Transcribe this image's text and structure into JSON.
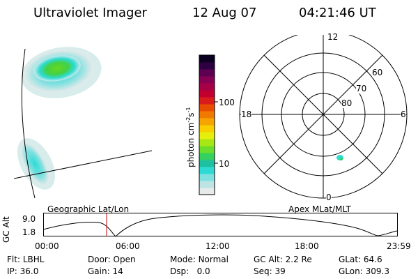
{
  "header": {
    "instrument": "Ultraviolet Imager",
    "date": "12 Aug 07",
    "time": "04:21:46 UT"
  },
  "colorbar": {
    "label": "photon cm⁻²s⁻¹",
    "label_parts": [
      "photon cm",
      "-2",
      "s",
      "-1"
    ],
    "ticks": [
      "100",
      "10"
    ],
    "colors": [
      "#e6eaea",
      "#bde4e4",
      "#7fe0e0",
      "#2ddbd4",
      "#1fc0a0",
      "#34d060",
      "#6ade2a",
      "#a8e614",
      "#e6ee0c",
      "#f8d000",
      "#f6a400",
      "#f07a00",
      "#e84c00",
      "#d81c1c",
      "#c20030",
      "#a60046",
      "#880054",
      "#5e0052",
      "#2e0042",
      "#0c0020"
    ]
  },
  "polar": {
    "mlt_labels": [
      "12",
      "18",
      "6",
      "0"
    ],
    "lat_labels": [
      "60",
      "70",
      "80"
    ]
  },
  "timeline": {
    "y_label": "GC Alt",
    "y_ticks": [
      "9.0",
      "1.8"
    ],
    "left_title": "Geographic Lat/Lon",
    "right_title": "Apex  MLat/MLT",
    "x_ticks": [
      "00:00",
      "06:00",
      "12:00",
      "18:00",
      "23:59"
    ]
  },
  "footer": {
    "row1": [
      {
        "label": "Flt:",
        "value": "LBHL"
      },
      {
        "label": "Door:",
        "value": "Open"
      },
      {
        "label": "Mode:",
        "value": "Normal"
      },
      {
        "label": "GC Alt:",
        "value": "2.2 Re"
      },
      {
        "label": "GLat:",
        "value": "64.6"
      }
    ],
    "row2": [
      {
        "label": "IP:",
        "value": "36.0"
      },
      {
        "label": "Gain:",
        "value": "14"
      },
      {
        "label": "Dsp:",
        "value": "0.0"
      },
      {
        "label": "Seq:",
        "value": "39"
      },
      {
        "label": "GLon:",
        "value": "309.3"
      }
    ]
  }
}
